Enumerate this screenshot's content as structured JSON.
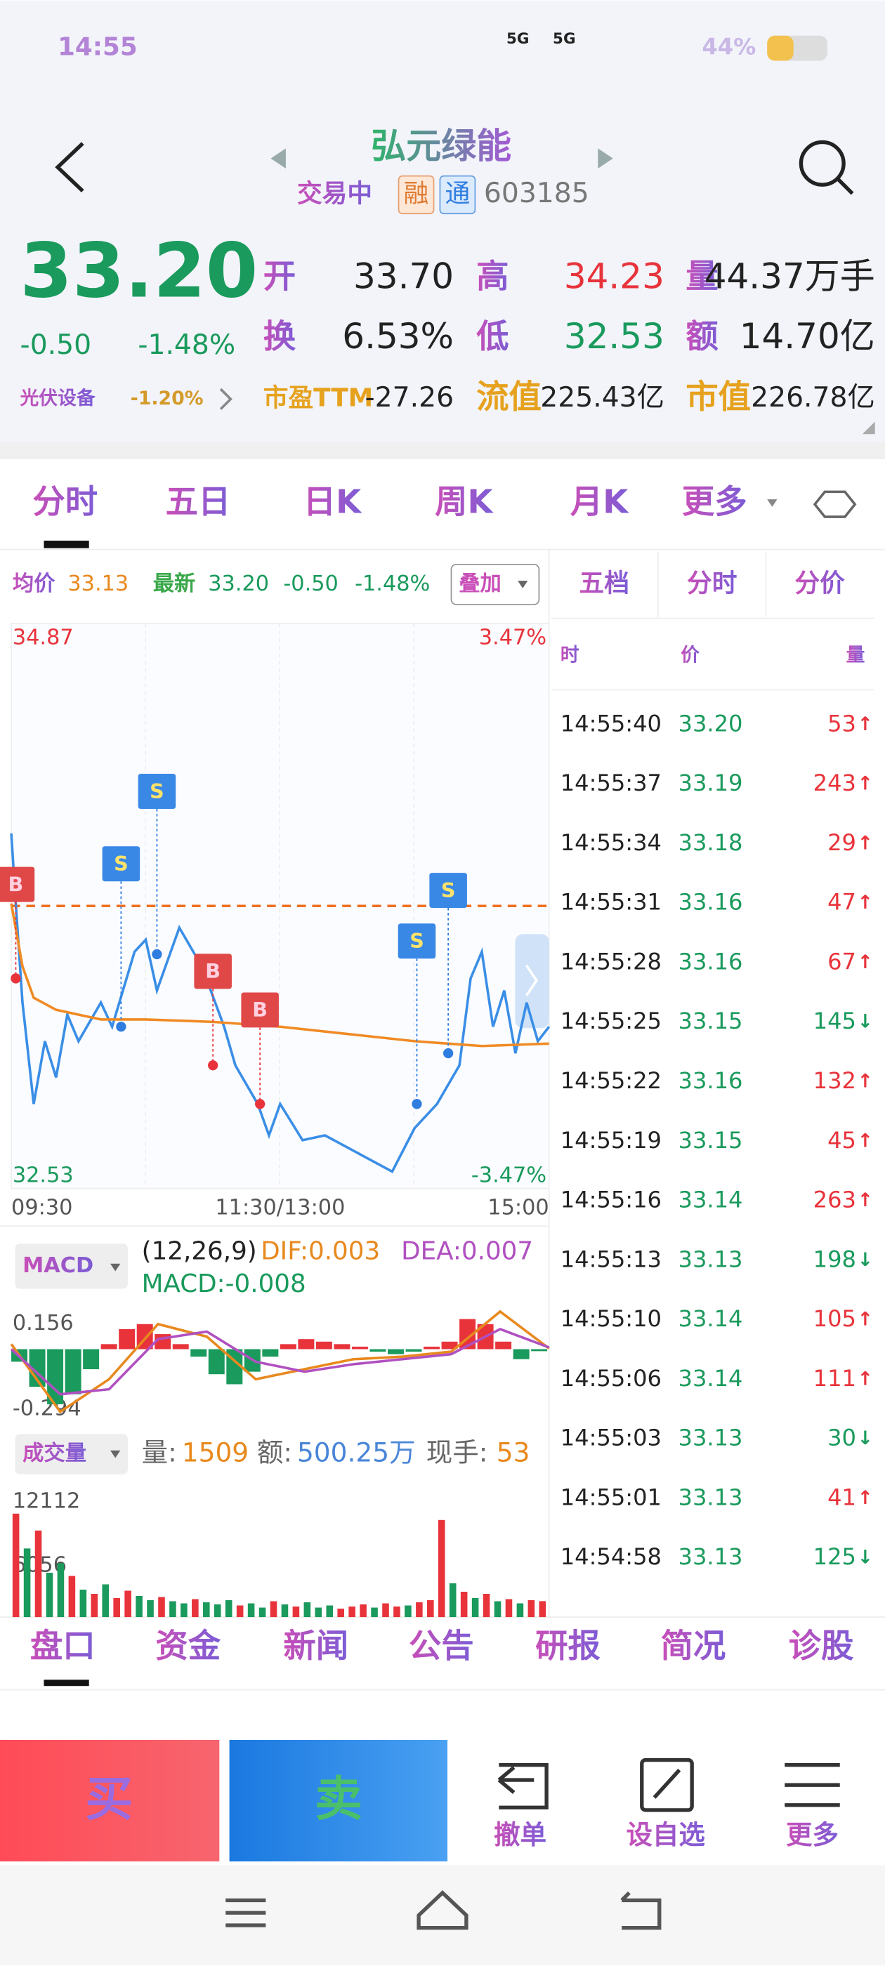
{
  "status": {
    "time": "14:55",
    "net": [
      "5G",
      "5G"
    ],
    "battery": "44%"
  },
  "header": {
    "name": "弘元绿能",
    "status": "交易中",
    "tags": [
      "融",
      "通"
    ],
    "code": "603185"
  },
  "quote": {
    "price": "33.20",
    "change": "-0.50",
    "pct": "-1.48%",
    "sector": "光伏设备",
    "sector_pct": "-1.20%",
    "fields": [
      {
        "label": "开",
        "value": "33.70"
      },
      {
        "label": "高",
        "value": "34.23"
      },
      {
        "label": "量",
        "value": "44.37万手"
      },
      {
        "label": "换",
        "value": "6.53%"
      },
      {
        "label": "低",
        "value": "32.53"
      },
      {
        "label": "额",
        "value": "14.70亿"
      },
      {
        "label": "市盈TTM",
        "value": "-27.26"
      },
      {
        "label": "流值",
        "value": "225.43亿"
      },
      {
        "label": "市值",
        "value": "226.78亿"
      }
    ]
  },
  "tabs": [
    "分时",
    "五日",
    "日K",
    "周K",
    "月K",
    "更多"
  ],
  "legend": {
    "avg_label": "均价",
    "avg": "33.13",
    "last_label": "最新",
    "last": "33.20",
    "change": "-0.50",
    "pct": "-1.48%",
    "overlay": "叠加"
  },
  "chart_data": {
    "type": "line",
    "xlim": [
      0,
      240
    ],
    "ylim": [
      32.53,
      34.87
    ],
    "yticks": [
      32.53,
      34.87
    ],
    "pct_ticks": [
      {
        "value": 32.53,
        "label": "-3.47%"
      },
      {
        "value": 34.87,
        "label": "3.47%"
      }
    ],
    "ref_line": 33.7,
    "xticks": [
      {
        "value": 0,
        "label": "09:30"
      },
      {
        "value": 120,
        "label": "11:30/13:00"
      },
      {
        "value": 240,
        "label": "15:00"
      }
    ],
    "series": [
      {
        "name": "价格",
        "color": "#3a8ee6",
        "x": [
          0,
          2,
          5,
          10,
          15,
          20,
          25,
          30,
          40,
          45,
          55,
          60,
          65,
          75,
          85,
          95,
          100,
          110,
          115,
          120,
          130,
          140,
          150,
          160,
          170,
          180,
          190,
          200,
          205,
          210,
          215,
          220,
          225,
          230,
          235,
          240
        ],
        "values": [
          34.0,
          33.71,
          33.3,
          32.88,
          33.14,
          32.99,
          33.25,
          33.14,
          33.3,
          33.2,
          33.51,
          33.56,
          33.35,
          33.61,
          33.45,
          33.2,
          33.04,
          32.88,
          32.75,
          32.88,
          32.73,
          32.75,
          32.7,
          32.65,
          32.6,
          32.78,
          32.88,
          33.04,
          33.4,
          33.51,
          33.2,
          33.35,
          33.09,
          33.3,
          33.14,
          33.2
        ]
      },
      {
        "name": "均价",
        "color": "#f08a24",
        "x": [
          0,
          5,
          10,
          20,
          40,
          60,
          90,
          120,
          150,
          180,
          210,
          240
        ],
        "values": [
          33.71,
          33.45,
          33.32,
          33.27,
          33.23,
          33.23,
          33.22,
          33.2,
          33.17,
          33.14,
          33.12,
          33.13
        ]
      }
    ],
    "markers": [
      {
        "label": "B",
        "x": 2,
        "value": 33.4
      },
      {
        "label": "S",
        "x": 49,
        "value": 33.2
      },
      {
        "label": "S",
        "x": 65,
        "value": 33.5
      },
      {
        "label": "B",
        "x": 90,
        "value": 33.04
      },
      {
        "label": "B",
        "x": 111,
        "value": 32.88
      },
      {
        "label": "S",
        "x": 181,
        "value": 32.88
      },
      {
        "label": "S",
        "x": 195,
        "value": 33.09
      }
    ]
  },
  "macd": {
    "title": "MACD",
    "params": "(12,26,9)",
    "dif": "DIF:0.003",
    "dea": "DEA:0.007",
    "macd": "MACD:-0.008",
    "ylim": [
      -0.294,
      0.156
    ],
    "yticks": [
      -0.294,
      0.156
    ],
    "bars": [
      -0.05,
      -0.15,
      -0.22,
      -0.18,
      -0.08,
      0.02,
      0.08,
      0.1,
      0.06,
      0.02,
      -0.03,
      -0.1,
      -0.14,
      -0.09,
      -0.03,
      0.02,
      0.04,
      0.03,
      0.02,
      0.01,
      -0.01,
      -0.02,
      -0.01,
      0.01,
      0.03,
      0.12,
      0.1,
      0.03,
      -0.04,
      -0.008
    ],
    "dif_values": [
      0.02,
      -0.25,
      -0.12,
      0.1,
      0.05,
      -0.12,
      -0.08,
      -0.04,
      -0.03,
      -0.01,
      0.15,
      0.003
    ],
    "dea_values": [
      0.0,
      -0.18,
      -0.16,
      0.04,
      0.07,
      -0.05,
      -0.09,
      -0.06,
      -0.04,
      -0.02,
      0.08,
      0.007
    ]
  },
  "volume": {
    "title": "成交量",
    "vol_label": "量:",
    "vol": "1509",
    "amt_label": "额:",
    "amt": "500.25万",
    "hand_label": "现手:",
    "hand": "53",
    "ylim": [
      0,
      12112
    ],
    "yticks": [
      12112,
      6056
    ],
    "values": [
      9800,
      6500,
      8200,
      4200,
      5100,
      3900,
      2600,
      2200,
      3100,
      1800,
      2500,
      2000,
      1600,
      1900,
      1500,
      1300,
      1700,
      1400,
      1200,
      1600,
      1100,
      1300,
      900,
      1500,
      1200,
      1000,
      1400,
      900,
      1100,
      800,
      1000,
      1200,
      900,
      1300,
      1000,
      1100,
      1400,
      1600,
      9200,
      3200,
      2400,
      1800,
      2200,
      1500,
      1700,
      1300,
      1600,
      1509
    ],
    "colors": [
      "#e8333b",
      "#1a9a5c",
      "#e8333b",
      "#1a9a5c",
      "#1a9a5c",
      "#e8333b",
      "#1a9a5c",
      "#e8333b",
      "#1a9a5c",
      "#e8333b",
      "#e8333b",
      "#1a9a5c",
      "#1a9a5c",
      "#e8333b",
      "#1a9a5c",
      "#1a9a5c",
      "#e8333b",
      "#1a9a5c",
      "#1a9a5c",
      "#1a9a5c",
      "#e8333b",
      "#1a9a5c",
      "#1a9a5c",
      "#e8333b",
      "#1a9a5c",
      "#e8333b",
      "#1a9a5c",
      "#1a9a5c",
      "#1a9a5c",
      "#e8333b",
      "#e8333b",
      "#e8333b",
      "#1a9a5c",
      "#e8333b",
      "#e8333b",
      "#1a9a5c",
      "#e8333b",
      "#e8333b",
      "#e8333b",
      "#1a9a5c",
      "#e8333b",
      "#1a9a5c",
      "#e8333b",
      "#1a9a5c",
      "#e8333b",
      "#1a9a5c",
      "#e8333b",
      "#e8333b"
    ]
  },
  "side": {
    "tabs": [
      "五档",
      "分时",
      "分价"
    ],
    "headers": [
      "时",
      "价",
      "量"
    ],
    "rows": [
      [
        "14:55:40",
        "33.20",
        "53",
        "↑"
      ],
      [
        "14:55:37",
        "33.19",
        "243",
        "↑"
      ],
      [
        "14:55:34",
        "33.18",
        "29",
        "↑"
      ],
      [
        "14:55:31",
        "33.16",
        "47",
        "↑"
      ],
      [
        "14:55:28",
        "33.16",
        "67",
        "↑"
      ],
      [
        "14:55:25",
        "33.15",
        "145",
        "↓"
      ],
      [
        "14:55:22",
        "33.16",
        "132",
        "↑"
      ],
      [
        "14:55:19",
        "33.15",
        "45",
        "↑"
      ],
      [
        "14:55:16",
        "33.14",
        "263",
        "↑"
      ],
      [
        "14:55:13",
        "33.13",
        "198",
        "↓"
      ],
      [
        "14:55:10",
        "33.14",
        "105",
        "↑"
      ],
      [
        "14:55:06",
        "33.14",
        "111",
        "↑"
      ],
      [
        "14:55:03",
        "33.13",
        "30",
        "↓"
      ],
      [
        "14:55:01",
        "33.13",
        "41",
        "↑"
      ],
      [
        "14:54:58",
        "33.13",
        "125",
        "↓"
      ]
    ]
  },
  "bottom_tabs": [
    "盘口",
    "资金",
    "新闻",
    "公告",
    "研报",
    "简况",
    "诊股"
  ],
  "actions": {
    "buy": "买",
    "sell": "卖",
    "items": [
      "撤单",
      "设自选",
      "更多"
    ]
  }
}
